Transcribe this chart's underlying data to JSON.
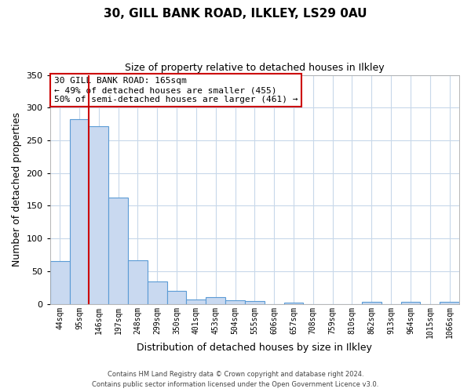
{
  "title": "30, GILL BANK ROAD, ILKLEY, LS29 0AU",
  "subtitle": "Size of property relative to detached houses in Ilkley",
  "xlabel": "Distribution of detached houses by size in Ilkley",
  "ylabel": "Number of detached properties",
  "categories": [
    "44sqm",
    "95sqm",
    "146sqm",
    "197sqm",
    "248sqm",
    "299sqm",
    "350sqm",
    "401sqm",
    "453sqm",
    "504sqm",
    "555sqm",
    "606sqm",
    "657sqm",
    "708sqm",
    "759sqm",
    "810sqm",
    "862sqm",
    "913sqm",
    "964sqm",
    "1015sqm",
    "1066sqm"
  ],
  "values": [
    65,
    282,
    272,
    163,
    67,
    34,
    20,
    7,
    10,
    5,
    4,
    0,
    2,
    0,
    0,
    0,
    3,
    0,
    3,
    0,
    3
  ],
  "bar_color": "#c9d9f0",
  "bar_edge_color": "#5b9bd5",
  "redline_index": 2,
  "ylim": [
    0,
    350
  ],
  "yticks": [
    0,
    50,
    100,
    150,
    200,
    250,
    300,
    350
  ],
  "annotation_title": "30 GILL BANK ROAD: 165sqm",
  "annotation_line1": "← 49% of detached houses are smaller (455)",
  "annotation_line2": "50% of semi-detached houses are larger (461) →",
  "footer_line1": "Contains HM Land Registry data © Crown copyright and database right 2024.",
  "footer_line2": "Contains public sector information licensed under the Open Government Licence v3.0.",
  "background_color": "#ffffff",
  "grid_color": "#c8d8ea"
}
